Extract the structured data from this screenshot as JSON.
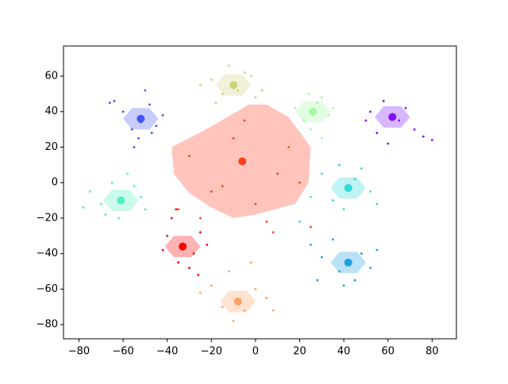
{
  "chart_data": {
    "type": "scatter",
    "xlim": [
      -87,
      91
    ],
    "ylim": [
      -88,
      77
    ],
    "xticks": [
      {
        "value": -80,
        "label": "−80"
      },
      {
        "value": -60,
        "label": "−60"
      },
      {
        "value": -40,
        "label": "−40"
      },
      {
        "value": -20,
        "label": "−20"
      },
      0,
      20,
      40,
      60,
      80
    ],
    "yticks": [
      {
        "value": -80,
        "label": "−80"
      },
      {
        "value": -60,
        "label": "−60"
      },
      {
        "value": -40,
        "label": "−40"
      },
      {
        "value": -20,
        "label": "−20"
      },
      0,
      20,
      40,
      60
    ],
    "series": [
      {
        "color": "#4455ee",
        "x": [
          -60,
          -56,
          -48,
          -45,
          -53,
          -50,
          -64,
          -42,
          -55,
          -47,
          -66,
          -52
        ],
        "y": [
          40,
          30,
          44,
          32,
          25,
          52,
          46,
          38,
          20,
          28,
          45,
          34
        ],
        "cx": -52,
        "cy": 36,
        "hull_x": [
          -60,
          -56,
          -48,
          -44,
          -48,
          -56
        ],
        "hull_y": [
          36,
          42,
          42,
          36,
          30,
          30
        ]
      },
      {
        "color": "#d0d080",
        "x": [
          -20,
          -15,
          -5,
          0,
          -12,
          -8,
          -25,
          3,
          -18,
          -2
        ],
        "y": [
          58,
          50,
          62,
          48,
          66,
          52,
          55,
          52,
          45,
          60
        ],
        "cx": -10,
        "cy": 55,
        "hull_x": [
          -18,
          -14,
          -6,
          -2,
          -6,
          -14
        ],
        "hull_y": [
          55,
          61,
          61,
          55,
          49,
          49
        ]
      },
      {
        "color": "#a0f8a0",
        "x": [
          18,
          22,
          30,
          33,
          25,
          28,
          20,
          35,
          24,
          30
        ],
        "y": [
          42,
          35,
          48,
          38,
          30,
          45,
          28,
          42,
          50,
          25
        ],
        "cx": 26,
        "cy": 40,
        "hull_x": [
          18,
          22,
          30,
          34,
          30,
          22
        ],
        "hull_y": [
          40,
          46,
          46,
          40,
          34,
          34
        ]
      },
      {
        "color": "#8010ff",
        "x": [
          52,
          55,
          68,
          72,
          60,
          65,
          76,
          50,
          58,
          80
        ],
        "y": [
          40,
          28,
          42,
          30,
          22,
          35,
          26,
          35,
          46,
          24
        ],
        "cx": 62,
        "cy": 37,
        "hull_x": [
          54,
          58,
          66,
          70,
          66,
          58
        ],
        "hull_y": [
          37,
          43,
          43,
          37,
          31,
          31
        ]
      },
      {
        "color": "#ff4020",
        "x": [
          -30,
          -20,
          -10,
          0,
          10,
          20,
          -25,
          -5,
          5,
          15,
          -15,
          -35,
          25,
          8
        ],
        "y": [
          15,
          -5,
          25,
          -12,
          5,
          0,
          -20,
          35,
          -22,
          20,
          -2,
          -15,
          -25,
          -28
        ],
        "cx": -6,
        "cy": 12,
        "hull_x": [
          -38,
          -21,
          -3,
          5,
          15,
          25,
          24,
          18,
          0,
          -10,
          -20,
          -30,
          -37
        ],
        "hull_y": [
          20,
          31,
          44,
          44,
          37,
          20,
          0,
          -12,
          -18,
          -20,
          -14,
          -6,
          5
        ]
      },
      {
        "color": "#50f0c0",
        "x": [
          -75,
          -68,
          -55,
          -50,
          -62,
          -58,
          -70,
          -52,
          -65,
          -78
        ],
        "y": [
          -5,
          -18,
          -2,
          -15,
          -20,
          5,
          -12,
          -8,
          0,
          -14
        ],
        "cx": -61,
        "cy": -10,
        "hull_x": [
          -69,
          -65,
          -57,
          -53,
          -57,
          -65
        ],
        "hull_y": [
          -10,
          -4,
          -4,
          -10,
          -16,
          -16
        ]
      },
      {
        "color": "#30d8d8",
        "x": [
          30,
          35,
          48,
          52,
          40,
          45,
          25,
          55,
          38,
          20
        ],
        "y": [
          5,
          -10,
          8,
          -5,
          -15,
          2,
          -8,
          -12,
          10,
          -22
        ],
        "cx": 42,
        "cy": -3,
        "hull_x": [
          34,
          38,
          46,
          50,
          46,
          38
        ],
        "hull_y": [
          -3,
          3,
          3,
          -3,
          -9,
          -9
        ]
      },
      {
        "color": "#ff0000",
        "x": [
          -40,
          -35,
          -28,
          -25,
          -38,
          -30,
          -22,
          -36,
          -42,
          -26
        ],
        "y": [
          -30,
          -45,
          -40,
          -28,
          -20,
          -48,
          -35,
          -15,
          -38,
          -52
        ],
        "cx": -33,
        "cy": -36,
        "hull_x": [
          -41,
          -37,
          -29,
          -25,
          -29,
          -37
        ],
        "hull_y": [
          -36,
          -30,
          -30,
          -36,
          -42,
          -42
        ]
      },
      {
        "color": "#1ca0e0",
        "x": [
          25,
          30,
          38,
          48,
          52,
          45,
          35,
          40,
          55,
          28
        ],
        "y": [
          -35,
          -42,
          -50,
          -40,
          -48,
          -55,
          -32,
          -58,
          -38,
          -55
        ],
        "cx": 42,
        "cy": -45,
        "hull_x": [
          34,
          38,
          46,
          50,
          46,
          38
        ],
        "hull_y": [
          -45,
          -39,
          -39,
          -45,
          -51,
          -51
        ]
      },
      {
        "color": "#ffa060",
        "x": [
          -20,
          -15,
          -5,
          0,
          -10,
          -12,
          5,
          -2,
          -25,
          8
        ],
        "y": [
          -58,
          -70,
          -72,
          -60,
          -78,
          -50,
          -65,
          -45,
          -62,
          -72
        ],
        "cx": -8,
        "cy": -67,
        "hull_x": [
          -16,
          -12,
          -4,
          0,
          -4,
          -12
        ],
        "hull_y": [
          -67,
          -61,
          -61,
          -67,
          -73,
          -73
        ]
      }
    ]
  }
}
